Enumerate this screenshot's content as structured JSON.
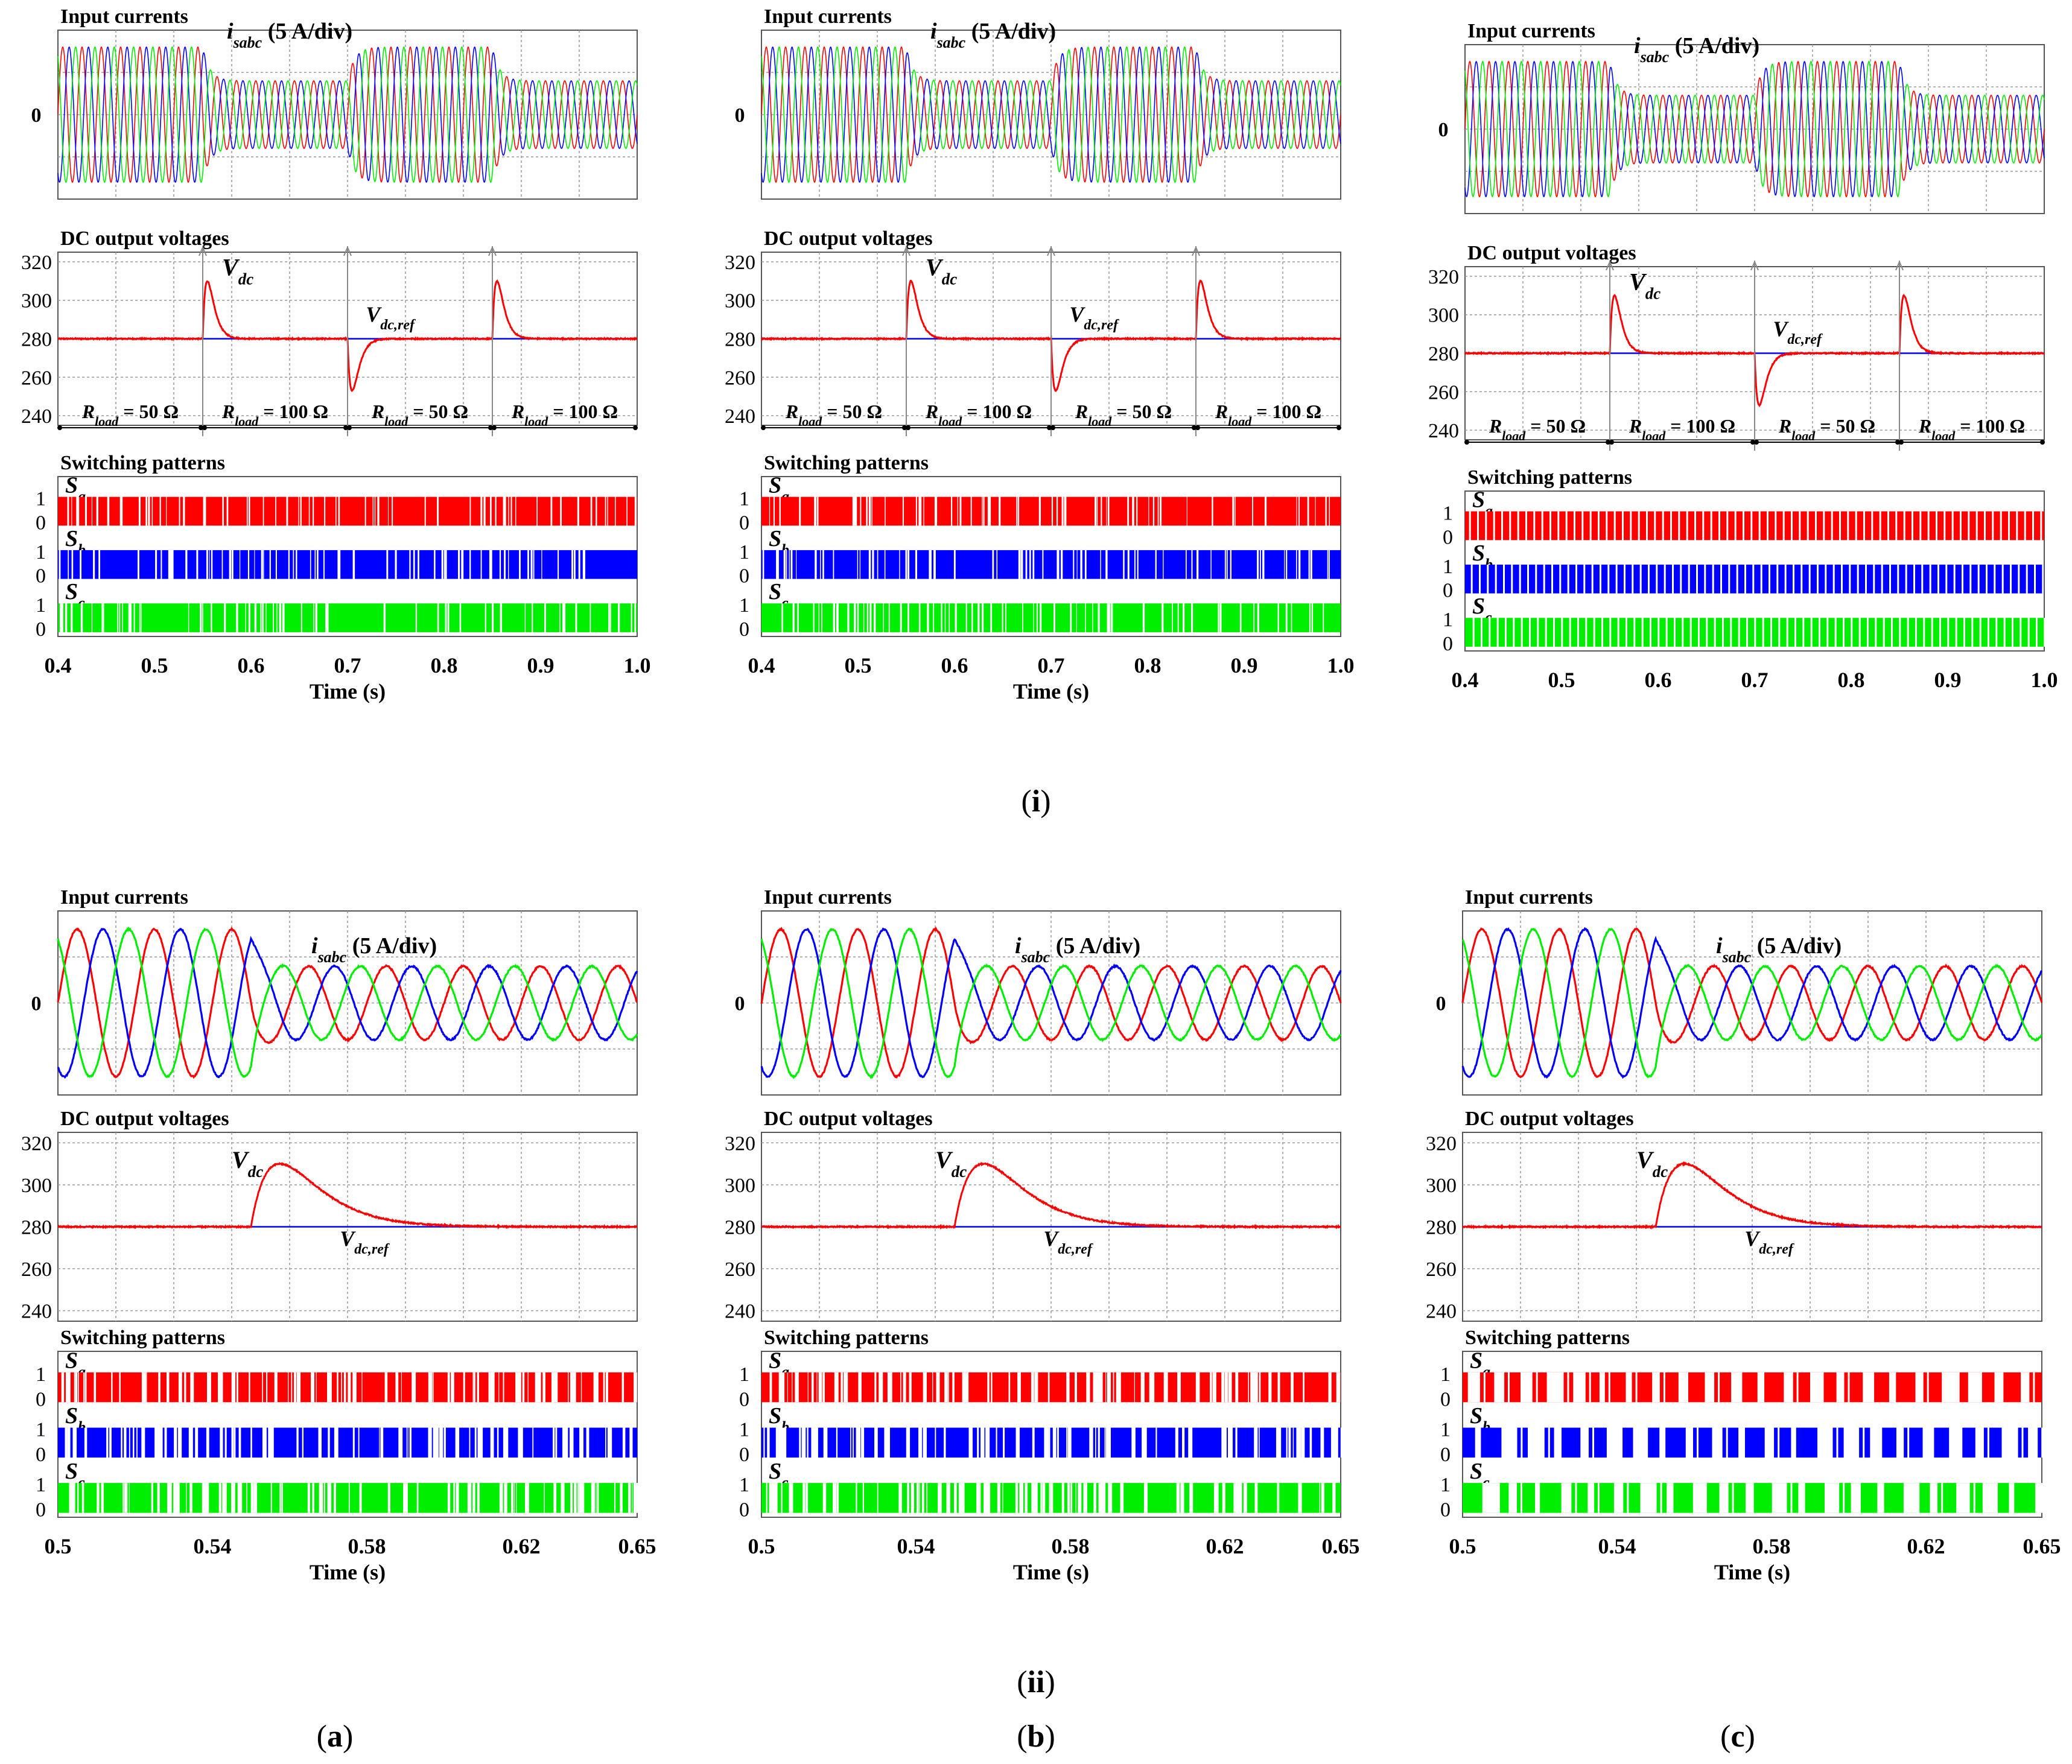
{
  "figure_title": "",
  "row_labels": {
    "top": "(i)",
    "bottom": "(ii)"
  },
  "col_labels": {
    "a": "(a)",
    "b": "(b)",
    "c": "(c)"
  },
  "colors": {
    "phase_a": "#ff0000",
    "phase_b": "#0000ff",
    "phase_c": "#00ee00",
    "vdc": "#ff0000",
    "vref": "#0000ff",
    "grid": "#9a9a9a"
  },
  "chart_data": [
    {
      "id": "i-a",
      "type": "line",
      "row": "i",
      "col": "a",
      "switching_style": "random",
      "xlabel": "Time (s)",
      "xlim": [
        0.4,
        1.0
      ],
      "xticks": [
        "0.4",
        "0.5",
        "0.6",
        "0.7",
        "0.8",
        "0.9",
        "1.0"
      ],
      "currents": {
        "title": "Input currents",
        "label": "isabc (5 A/div)",
        "zero_label": "0",
        "segments": [
          [
            0.4,
            0.55,
            1.0
          ],
          [
            0.55,
            0.7,
            0.5
          ],
          [
            0.7,
            0.85,
            1.0
          ],
          [
            0.85,
            1.0,
            0.5
          ]
        ]
      },
      "voltage": {
        "title": "DC output voltages",
        "ylim": [
          235,
          325
        ],
        "yticks": [
          "320",
          "300",
          "280",
          "260",
          "240"
        ],
        "vref": 280,
        "vdc_label": "Vdc",
        "vref_label": "Vdc,ref",
        "events": [
          [
            0.55,
            30
          ],
          [
            0.7,
            -27
          ],
          [
            0.85,
            30
          ]
        ],
        "load_segments": [
          {
            "from": 0.4,
            "to": 0.55,
            "label": "Rload = 50 Ω"
          },
          {
            "from": 0.55,
            "to": 0.7,
            "label": "Rload = 100 Ω"
          },
          {
            "from": 0.7,
            "to": 0.85,
            "label": "Rload = 50 Ω"
          },
          {
            "from": 0.85,
            "to": 1.0,
            "label": "Rload = 100 Ω"
          }
        ]
      },
      "switching": {
        "title": "Switching patterns",
        "signals": [
          "Sa",
          "Sb",
          "Sc"
        ],
        "levels": [
          "1",
          "0"
        ]
      }
    },
    {
      "id": "i-b",
      "type": "line",
      "row": "i",
      "col": "b",
      "switching_style": "random",
      "xlabel": "Time (s)",
      "xlim": [
        0.4,
        1.0
      ],
      "xticks": [
        "0.4",
        "0.5",
        "0.6",
        "0.7",
        "0.8",
        "0.9",
        "1.0"
      ],
      "currents": {
        "title": "Input currents",
        "label": "isabc (5 A/div)",
        "zero_label": "0",
        "segments": [
          [
            0.4,
            0.55,
            1.0
          ],
          [
            0.55,
            0.7,
            0.5
          ],
          [
            0.7,
            0.85,
            1.0
          ],
          [
            0.85,
            1.0,
            0.5
          ]
        ]
      },
      "voltage": {
        "title": "DC output voltages",
        "ylim": [
          235,
          325
        ],
        "yticks": [
          "320",
          "300",
          "280",
          "260",
          "240"
        ],
        "vref": 280,
        "vdc_label": "Vdc",
        "vref_label": "Vdc,ref",
        "events": [
          [
            0.55,
            30
          ],
          [
            0.7,
            -27
          ],
          [
            0.85,
            30
          ]
        ],
        "load_segments": [
          {
            "from": 0.4,
            "to": 0.55,
            "label": "Rload = 50 Ω"
          },
          {
            "from": 0.55,
            "to": 0.7,
            "label": "Rload = 100 Ω"
          },
          {
            "from": 0.7,
            "to": 0.85,
            "label": "Rload = 50 Ω"
          },
          {
            "from": 0.85,
            "to": 1.0,
            "label": "Rload = 100 Ω"
          }
        ]
      },
      "switching": {
        "title": "Switching patterns",
        "signals": [
          "Sa",
          "Sb",
          "Sc"
        ],
        "levels": [
          "1",
          "0"
        ]
      }
    },
    {
      "id": "i-c",
      "type": "line",
      "row": "i",
      "col": "c",
      "switching_style": "regular",
      "xlabel": "",
      "xlim": [
        0.4,
        1.0
      ],
      "xticks": [
        "0.4",
        "0.5",
        "0.6",
        "0.7",
        "0.8",
        "0.9",
        "1.0"
      ],
      "currents": {
        "title": "Input currents",
        "label": "isabc (5 A/div)",
        "zero_label": "0",
        "segments": [
          [
            0.4,
            0.55,
            1.0
          ],
          [
            0.55,
            0.7,
            0.5
          ],
          [
            0.7,
            0.85,
            1.0
          ],
          [
            0.85,
            1.0,
            0.5
          ]
        ]
      },
      "voltage": {
        "title": "DC output voltages",
        "ylim": [
          235,
          325
        ],
        "yticks": [
          "320",
          "300",
          "280",
          "260",
          "240"
        ],
        "vref": 280,
        "vdc_label": "Vdc",
        "vref_label": "Vdc,ref",
        "events": [
          [
            0.55,
            30
          ],
          [
            0.7,
            -27
          ],
          [
            0.85,
            30
          ]
        ],
        "load_segments": [
          {
            "from": 0.4,
            "to": 0.55,
            "label": "Rload = 50 Ω"
          },
          {
            "from": 0.55,
            "to": 0.7,
            "label": "Rload = 100 Ω"
          },
          {
            "from": 0.7,
            "to": 0.85,
            "label": "Rload = 50 Ω"
          },
          {
            "from": 0.85,
            "to": 1.0,
            "label": "Rload = 100 Ω"
          }
        ]
      },
      "switching": {
        "title": "Switching patterns",
        "signals": [
          "Sa",
          "Sb",
          "Sc"
        ],
        "levels": [
          "1",
          "0"
        ]
      }
    },
    {
      "id": "ii-a",
      "type": "line",
      "row": "ii",
      "col": "a",
      "switching_style": "random",
      "xlabel": "Time (s)",
      "xlim": [
        0.5,
        0.65
      ],
      "xticks": [
        "0.5",
        "0.54",
        "0.58",
        "0.62",
        "0.65"
      ],
      "xtick_values": [
        0.5,
        0.54,
        0.58,
        0.62,
        0.65
      ],
      "currents": {
        "title": "Input currents",
        "label": "isabc (5 A/div)",
        "zero_label": "0",
        "segments": [
          [
            0.5,
            0.55,
            1.0
          ],
          [
            0.55,
            0.65,
            0.5
          ]
        ]
      },
      "voltage": {
        "title": "DC output voltages",
        "ylim": [
          235,
          325
        ],
        "yticks": [
          "320",
          "300",
          "280",
          "260",
          "240"
        ],
        "vref": 280,
        "vdc_label": "Vdc",
        "vref_label": "Vdc,ref",
        "events": [
          [
            0.55,
            30
          ]
        ],
        "load_segments": []
      },
      "switching": {
        "title": "Switching patterns",
        "signals": [
          "Sa",
          "Sb",
          "Sc"
        ],
        "levels": [
          "1",
          "0"
        ]
      }
    },
    {
      "id": "ii-b",
      "type": "line",
      "row": "ii",
      "col": "b",
      "switching_style": "random",
      "xlabel": "Time (s)",
      "xlim": [
        0.5,
        0.65
      ],
      "xticks": [
        "0.5",
        "0.54",
        "0.58",
        "0.62",
        "0.65"
      ],
      "xtick_values": [
        0.5,
        0.54,
        0.58,
        0.62,
        0.65
      ],
      "currents": {
        "title": "Input currents",
        "label": "isabc (5 A/div)",
        "zero_label": "0",
        "segments": [
          [
            0.5,
            0.55,
            1.0
          ],
          [
            0.55,
            0.65,
            0.5
          ]
        ]
      },
      "voltage": {
        "title": "DC output voltages",
        "ylim": [
          235,
          325
        ],
        "yticks": [
          "320",
          "300",
          "280",
          "260",
          "240"
        ],
        "vref": 280,
        "vdc_label": "Vdc",
        "vref_label": "Vdc,ref",
        "events": [
          [
            0.55,
            30
          ]
        ],
        "load_segments": []
      },
      "switching": {
        "title": "Switching patterns",
        "signals": [
          "Sa",
          "Sb",
          "Sc"
        ],
        "levels": [
          "1",
          "0"
        ]
      }
    },
    {
      "id": "ii-c",
      "type": "line",
      "row": "ii",
      "col": "c",
      "switching_style": "blocky",
      "xlabel": "Time (s)",
      "xlim": [
        0.5,
        0.65
      ],
      "xticks": [
        "0.5",
        "0.54",
        "0.58",
        "0.62",
        "0.65"
      ],
      "xtick_values": [
        0.5,
        0.54,
        0.58,
        0.62,
        0.65
      ],
      "currents": {
        "title": "Input currents",
        "label": "isabc (5 A/div)",
        "zero_label": "0",
        "segments": [
          [
            0.5,
            0.55,
            1.0
          ],
          [
            0.55,
            0.65,
            0.5
          ]
        ]
      },
      "voltage": {
        "title": "DC output voltages",
        "ylim": [
          235,
          325
        ],
        "yticks": [
          "320",
          "300",
          "280",
          "260",
          "240"
        ],
        "vref": 280,
        "vdc_label": "Vdc",
        "vref_label": "Vdc,ref",
        "events": [
          [
            0.55,
            30
          ]
        ],
        "load_segments": []
      },
      "switching": {
        "title": "Switching patterns",
        "signals": [
          "Sa",
          "Sb",
          "Sc"
        ],
        "levels": [
          "1",
          "0"
        ]
      }
    }
  ]
}
